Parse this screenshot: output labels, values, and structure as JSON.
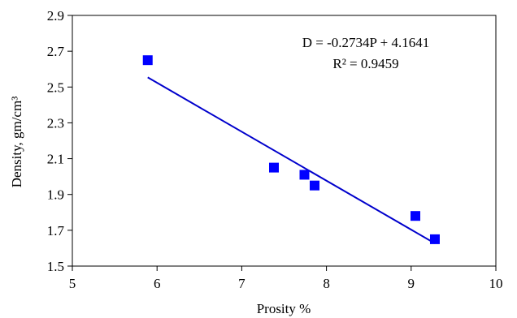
{
  "chart_data": {
    "type": "scatter",
    "xlabel": "Prosity %",
    "ylabel": "Density, gm/cm³",
    "xlim": [
      5,
      10
    ],
    "ylim": [
      1.5,
      2.9
    ],
    "x_ticks": [
      5,
      6,
      7,
      8,
      9,
      10
    ],
    "y_ticks": [
      "1.5",
      "1.7",
      "1.9",
      "2.1",
      "2.3",
      "2.5",
      "2.7",
      "2.9"
    ],
    "grid": false,
    "legend": "none",
    "series": [
      {
        "color": "#0000ff",
        "marker": "square",
        "points": [
          {
            "x": 5.89,
            "y": 2.65
          },
          {
            "x": 7.38,
            "y": 2.05
          },
          {
            "x": 7.74,
            "y": 2.01
          },
          {
            "x": 7.86,
            "y": 1.95
          },
          {
            "x": 9.05,
            "y": 1.78
          },
          {
            "x": 9.28,
            "y": 1.65
          }
        ]
      }
    ],
    "trendline": {
      "color": "#0000cc",
      "slope": -0.2734,
      "intercept": 4.1641,
      "x_from": 5.89,
      "x_to": 9.28
    },
    "annotations": {
      "equation": "D = -0.2734P + 4.1641",
      "r_squared": "R² = 0.9459"
    }
  }
}
